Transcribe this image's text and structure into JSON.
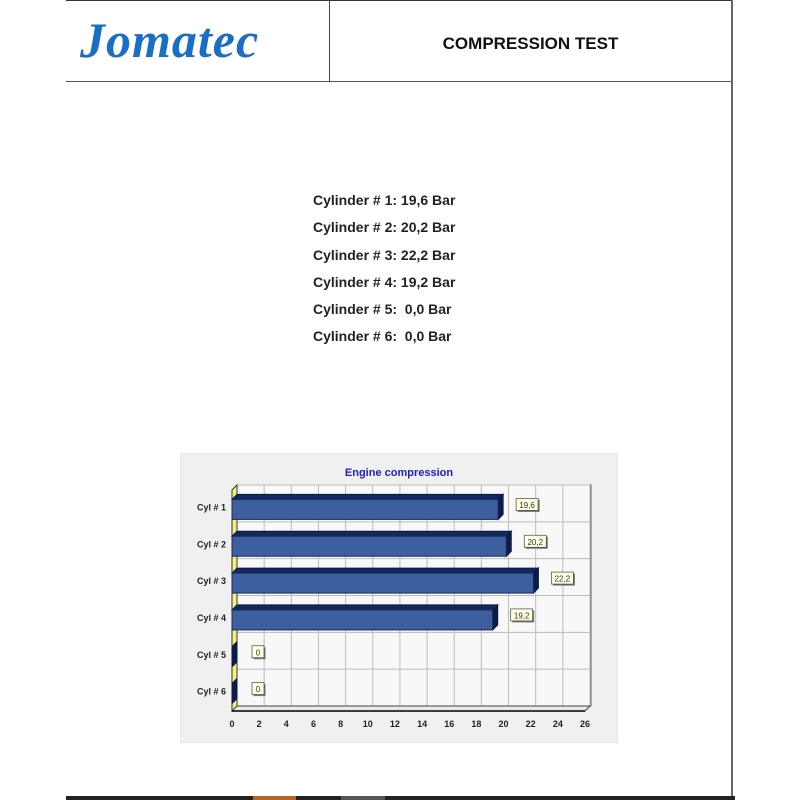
{
  "header": {
    "logo_text": "Jomatec",
    "title": "COMPRESSION TEST"
  },
  "readings": [
    "Cylinder # 1: 19,6 Bar",
    "Cylinder # 2: 20,2 Bar",
    "Cylinder # 3: 22,2 Bar",
    "Cylinder # 4: 19,2 Bar",
    "Cylinder # 5:  0,0 Bar",
    "Cylinder # 6:  0,0 Bar"
  ],
  "chart_data": {
    "type": "bar",
    "orientation": "horizontal",
    "title": "Engine compression",
    "categories": [
      "Cyl # 1",
      "Cyl # 2",
      "Cyl # 3",
      "Cyl # 4",
      "Cyl # 5",
      "Cyl # 6"
    ],
    "values": [
      19.6,
      20.2,
      22.2,
      19.2,
      0,
      0
    ],
    "data_labels": [
      "19,6",
      "20,2",
      "22,2",
      "19,2",
      "0",
      "0"
    ],
    "xlim": [
      0,
      26
    ],
    "xticks": [
      0,
      2,
      4,
      6,
      8,
      10,
      12,
      14,
      16,
      18,
      20,
      22,
      24,
      26
    ],
    "grid": true,
    "bar_color": "#3d5f9f",
    "title_color": "#2020c0"
  }
}
